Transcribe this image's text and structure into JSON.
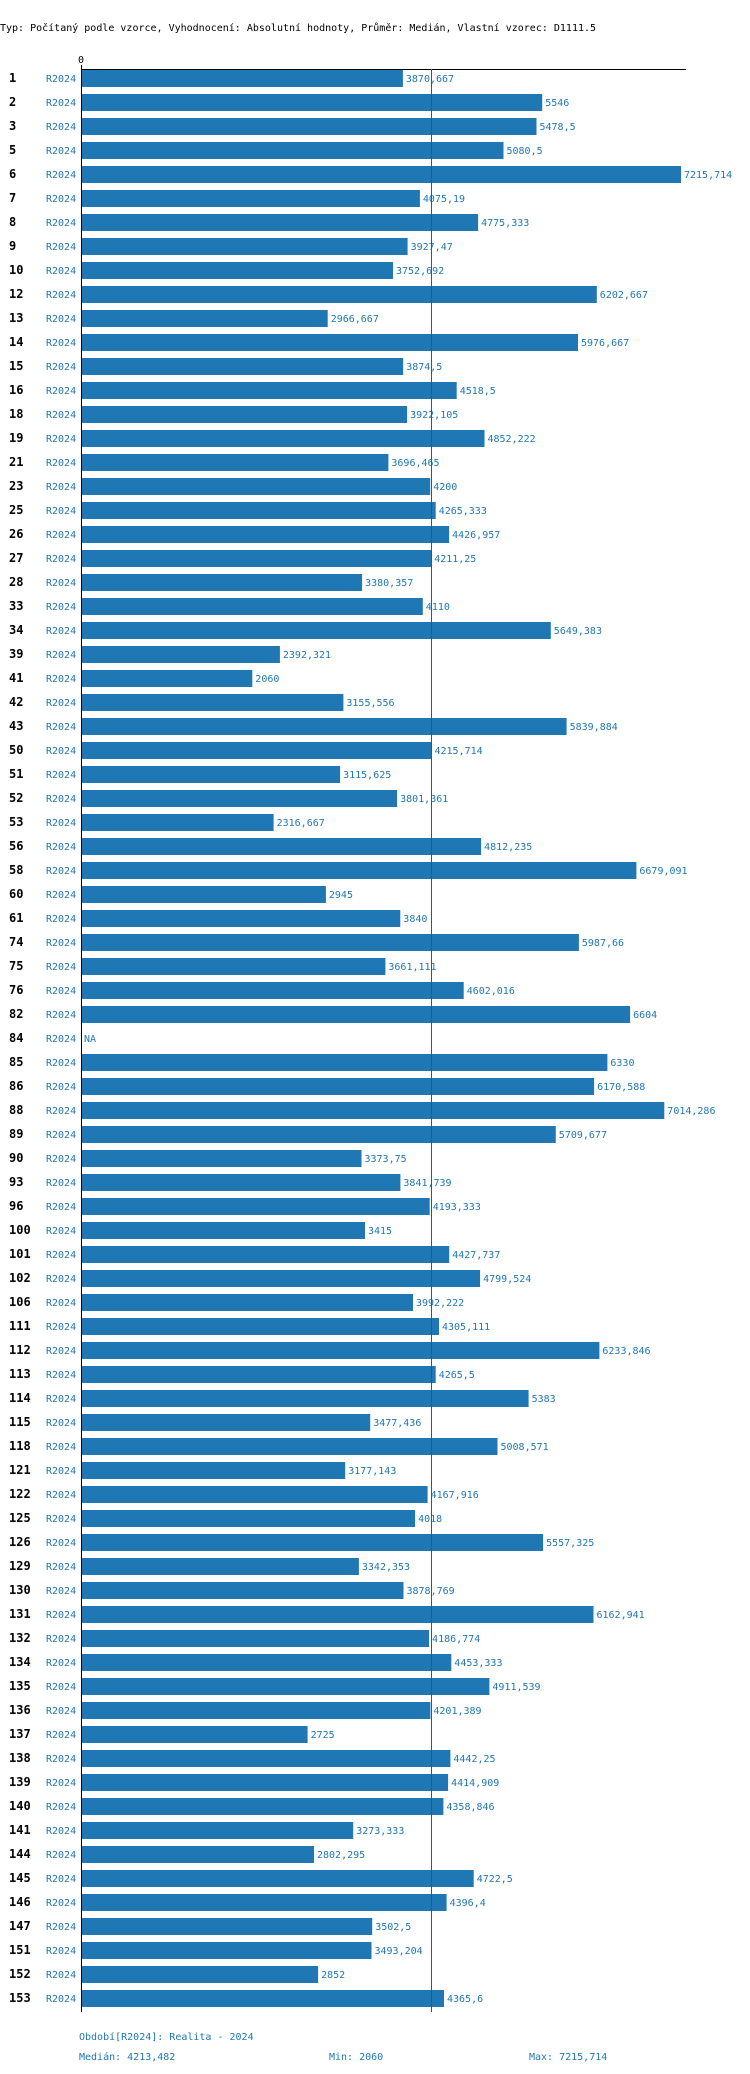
{
  "chart_data": {
    "type": "bar",
    "title": "Typ: Počítaný podle vzorce, Vyhodnocení: Absolutní hodnoty, Průměr: Medián, Vlastní vzorec: D1111.5",
    "xlim": [
      0,
      7215.714
    ],
    "x_ticks": [
      "0"
    ],
    "median_line": 4213.482,
    "categories": [
      "1",
      "2",
      "3",
      "5",
      "6",
      "7",
      "8",
      "9",
      "10",
      "12",
      "13",
      "14",
      "15",
      "16",
      "18",
      "19",
      "21",
      "23",
      "25",
      "26",
      "27",
      "28",
      "33",
      "34",
      "39",
      "41",
      "42",
      "43",
      "50",
      "51",
      "52",
      "53",
      "56",
      "58",
      "60",
      "61",
      "74",
      "75",
      "76",
      "82",
      "84",
      "85",
      "86",
      "88",
      "89",
      "90",
      "93",
      "96",
      "100",
      "101",
      "102",
      "106",
      "111",
      "112",
      "113",
      "114",
      "115",
      "118",
      "121",
      "122",
      "125",
      "126",
      "129",
      "130",
      "131",
      "132",
      "134",
      "135",
      "136",
      "137",
      "138",
      "139",
      "140",
      "141",
      "144",
      "145",
      "146",
      "147",
      "151",
      "152",
      "153"
    ],
    "series": [
      {
        "name": "R2024",
        "values": [
          3870.667,
          5546,
          5478.5,
          5080.5,
          7215.714,
          4075.19,
          4775.333,
          3927.47,
          3752.692,
          6202.667,
          2966.667,
          5976.667,
          3874.5,
          4518.5,
          3922.105,
          4852.222,
          3696.465,
          4200,
          4265.333,
          4426.957,
          4211.25,
          3380.357,
          4110,
          5649.383,
          2392.321,
          2060,
          3155.556,
          5839.884,
          4215.714,
          3115.625,
          3801.361,
          2316.667,
          4812.235,
          6679.091,
          2945,
          3840,
          5987.66,
          3661.111,
          4602.016,
          6604,
          null,
          6330,
          6170.588,
          7014.286,
          5709.677,
          3373.75,
          3841.739,
          4193.333,
          3415,
          4427.737,
          4799.524,
          3992.222,
          4305.111,
          6233.846,
          4265.5,
          5383,
          3477.436,
          5008.571,
          3177.143,
          4167.916,
          4018,
          5557.325,
          3342.353,
          3878.769,
          6162.941,
          4186.774,
          4453.333,
          4911.539,
          4201.389,
          2725,
          4442.25,
          4414.909,
          4358.846,
          3273.333,
          2802.295,
          4722.5,
          4396.4,
          3502.5,
          3493.204,
          2852,
          4365.6
        ],
        "value_labels": [
          "3870,667",
          "5546",
          "5478,5",
          "5080,5",
          "7215,714",
          "4075,19",
          "4775,333",
          "3927,47",
          "3752,692",
          "6202,667",
          "2966,667",
          "5976,667",
          "3874,5",
          "4518,5",
          "3922,105",
          "4852,222",
          "3696,465",
          "4200",
          "4265,333",
          "4426,957",
          "4211,25",
          "3380,357",
          "4110",
          "5649,383",
          "2392,321",
          "2060",
          "3155,556",
          "5839,884",
          "4215,714",
          "3115,625",
          "3801,361",
          "2316,667",
          "4812,235",
          "6679,091",
          "2945",
          "3840",
          "5987,66",
          "3661,111",
          "4602,016",
          "6604",
          "NA",
          "6330",
          "6170,588",
          "7014,286",
          "5709,677",
          "3373,75",
          "3841,739",
          "4193,333",
          "3415",
          "4427,737",
          "4799,524",
          "3992,222",
          "4305,111",
          "6233,846",
          "4265,5",
          "5383",
          "3477,436",
          "5008,571",
          "3177,143",
          "4167,916",
          "4018",
          "5557,325",
          "3342,353",
          "3878,769",
          "6162,941",
          "4186,774",
          "4453,333",
          "4911,539",
          "4201,389",
          "2725",
          "4442,25",
          "4414,909",
          "4358,846",
          "3273,333",
          "2802,295",
          "4722,5",
          "4396,4",
          "3502,5",
          "3493,204",
          "2852",
          "4365,6"
        ]
      }
    ]
  },
  "footer": {
    "period": "Období[R2024]: Realita - 2024",
    "median": "Medián: 4213,482",
    "min": "Min: 2060",
    "max": "Max: 7215,714"
  },
  "colors": {
    "bar": "#1f77b4",
    "axis": "#000000",
    "median_line": "#1b5e92"
  }
}
